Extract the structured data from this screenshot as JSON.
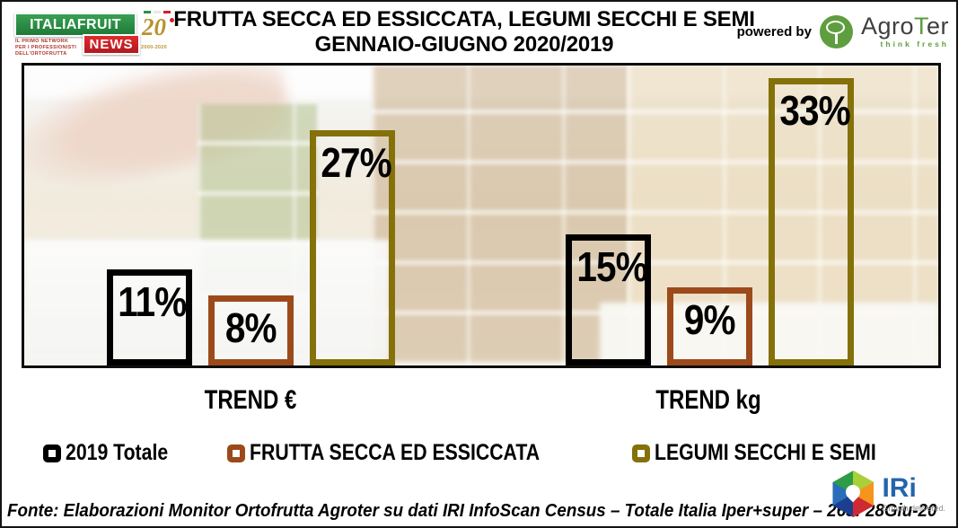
{
  "header": {
    "title_line1": "FRUTTA SECCA ED ESSICCATA,  LEGUMI SECCHI E SEMI",
    "title_line2": "GENNAIO-GIUGNO 2020/2019",
    "powered_by": "powered by",
    "italiafruit": {
      "name_top": "ITALIAFRUIT",
      "name_bottom": "NEWS",
      "tagline_lines": [
        "IL PRIMO NETWORK",
        "PER I PROFESSIONISTI",
        "DELL'ORTOFRUTTA"
      ],
      "anniversary": "20",
      "years": "2000-2020"
    },
    "agroter": {
      "prefix": "Agro",
      "t": "T",
      "suffix": "er",
      "tagline": "think fresh"
    }
  },
  "chart_data": {
    "type": "bar",
    "title": "FRUTTA SECCA ED ESSICCATA, LEGUMI SECCHI E SEMI - GENNAIO-GIUGNO 2020/2019",
    "groups": [
      "TREND €",
      "TREND kg"
    ],
    "series": [
      {
        "name": "2019 Totale",
        "color": "#000000",
        "values": [
          11,
          15
        ]
      },
      {
        "name": "FRUTTA SECCA ED ESSICCATA",
        "color": "#9c4a1b",
        "values": [
          8,
          9
        ]
      },
      {
        "name": "LEGUMI SECCHI E SEMI",
        "color": "#847109",
        "values": [
          27,
          33
        ]
      }
    ],
    "unit": "%",
    "ylim": [
      0,
      35
    ],
    "bar_style": "outlined-transparent-over-photo",
    "value_labels": "inside-top",
    "legend_position": "bottom",
    "background_image_alt": "faded photo of supermarket shelves stacked with clear containers of dried fruit, nuts and legumes"
  },
  "footer": {
    "source": "Fonte: Elaborazioni Monitor Ortofrutta Agroter su dati IRI InfoScan Census – Totale Italia Iper+super – 26s: 28Giu-20",
    "iri": {
      "name": "IRi",
      "tagline": "Growth delivered."
    }
  }
}
